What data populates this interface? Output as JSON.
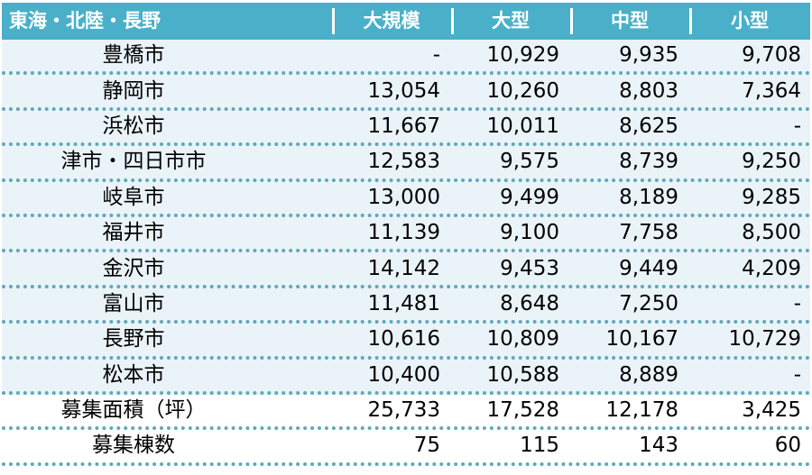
{
  "header": {
    "region": "東海・北陸・長野",
    "col1": "大規模",
    "col2": "大型",
    "col3": "中型",
    "col4": "小型"
  },
  "rows": [
    {
      "city": "豊橋市",
      "v1": "-",
      "v2": "10,929",
      "v3": "9,935",
      "v4": "9,708"
    },
    {
      "city": "静岡市",
      "v1": "13,054",
      "v2": "10,260",
      "v3": "8,803",
      "v4": "7,364"
    },
    {
      "city": "浜松市",
      "v1": "11,667",
      "v2": "10,011",
      "v3": "8,625",
      "v4": "-"
    },
    {
      "city": "津市・四日市市",
      "v1": "12,583",
      "v2": "9,575",
      "v3": "8,739",
      "v4": "9,250"
    },
    {
      "city": "岐阜市",
      "v1": "13,000",
      "v2": "9,499",
      "v3": "8,189",
      "v4": "9,285"
    },
    {
      "city": "福井市",
      "v1": "11,139",
      "v2": "9,100",
      "v3": "7,758",
      "v4": "8,500"
    },
    {
      "city": "金沢市",
      "v1": "14,142",
      "v2": "9,453",
      "v3": "9,449",
      "v4": "4,209"
    },
    {
      "city": "富山市",
      "v1": "11,481",
      "v2": "8,648",
      "v3": "7,250",
      "v4": "-"
    },
    {
      "city": "長野市",
      "v1": "10,616",
      "v2": "10,809",
      "v3": "10,167",
      "v4": "10,729"
    },
    {
      "city": "松本市",
      "v1": "10,400",
      "v2": "10,588",
      "v3": "8,889",
      "v4": "-"
    },
    {
      "city": "募集面積（坪）",
      "v1": "25,733",
      "v2": "17,528",
      "v3": "12,178",
      "v4": "3,425"
    },
    {
      "city": "募集棟数",
      "v1": "75",
      "v2": "115",
      "v3": "143",
      "v4": "60"
    }
  ],
  "colors": {
    "header_bg": "#4ab0c9",
    "row_shade": "#eaf3f8",
    "dotted_border": "#5fa9b8"
  }
}
